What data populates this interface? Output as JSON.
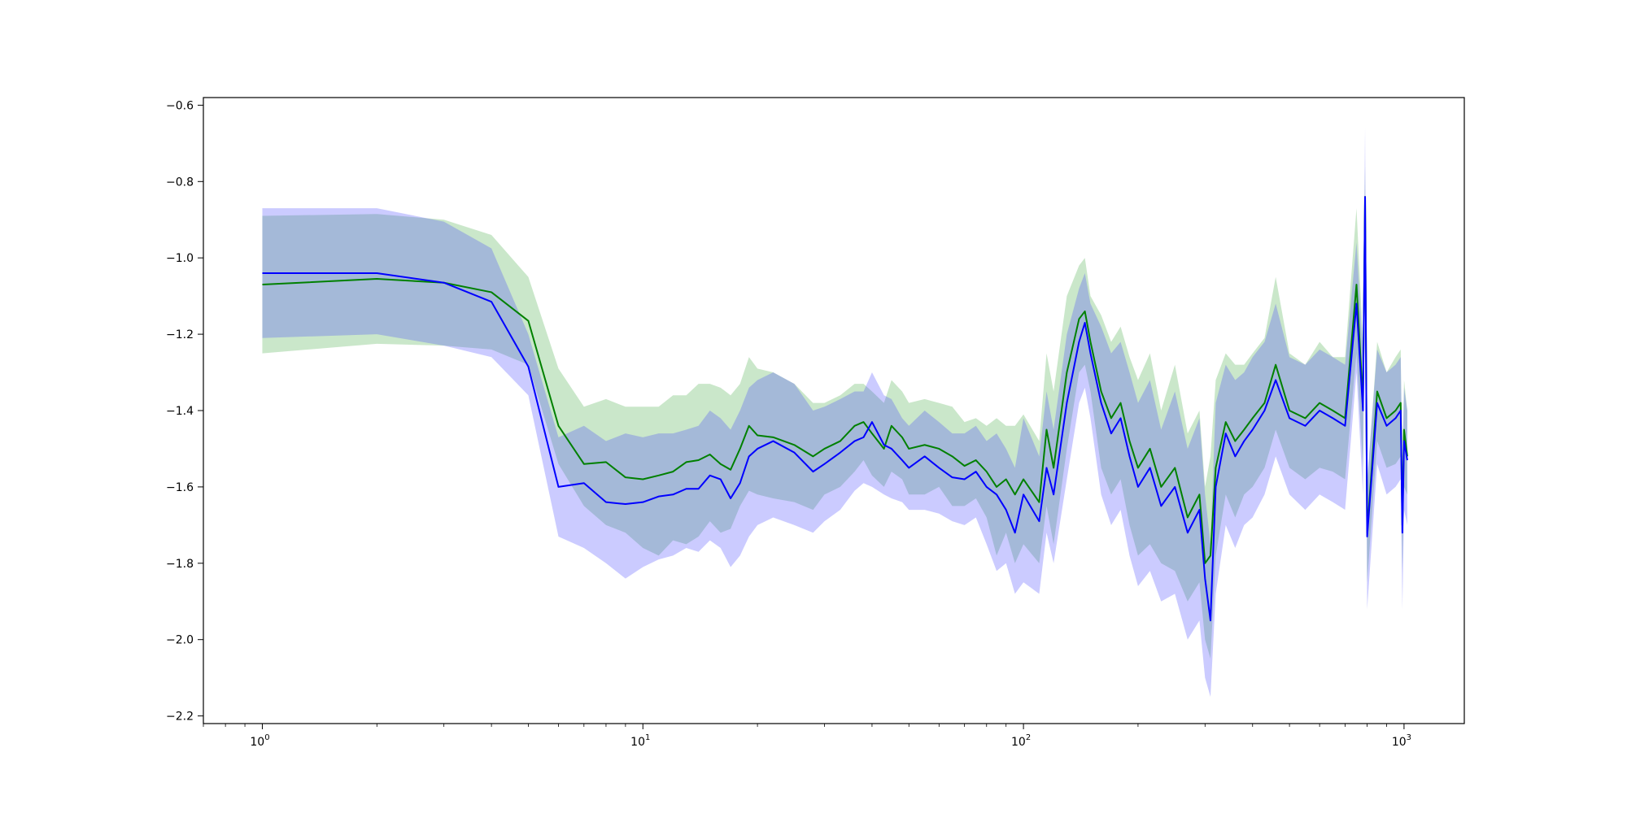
{
  "chart_data": {
    "type": "line",
    "title": "",
    "xlabel": "",
    "ylabel": "",
    "xscale": "log",
    "xlim": [
      0.7,
      1440
    ],
    "ylim": [
      -2.22,
      -0.58
    ],
    "grid": false,
    "legend": "none",
    "x_ticks": [
      {
        "value": 1,
        "base": "10",
        "exp": "0"
      },
      {
        "value": 10,
        "base": "10",
        "exp": "1"
      },
      {
        "value": 100,
        "base": "10",
        "exp": "2"
      },
      {
        "value": 1000,
        "base": "10",
        "exp": "3"
      }
    ],
    "y_ticks": [
      {
        "value": -0.6,
        "label": "−0.6"
      },
      {
        "value": -0.8,
        "label": "−0.8"
      },
      {
        "value": -1.0,
        "label": "−1.0"
      },
      {
        "value": -1.2,
        "label": "−1.2"
      },
      {
        "value": -1.4,
        "label": "−1.4"
      },
      {
        "value": -1.6,
        "label": "−1.6"
      },
      {
        "value": -1.8,
        "label": "−1.8"
      },
      {
        "value": -2.0,
        "label": "−2.0"
      },
      {
        "value": -2.2,
        "label": "−2.2"
      }
    ],
    "series": [
      {
        "color": "#008000",
        "band_color": "#2ca02c",
        "band_opacity": 0.25,
        "x": [
          1,
          2,
          3,
          4,
          5,
          6,
          7,
          8,
          9,
          10,
          11,
          12,
          13,
          14,
          15,
          16,
          17,
          18,
          19,
          20,
          22,
          25,
          28,
          30,
          33,
          36,
          38,
          40,
          43,
          45,
          48,
          50,
          55,
          60,
          65,
          70,
          75,
          80,
          85,
          90,
          95,
          100,
          110,
          115,
          120,
          130,
          140,
          145,
          150,
          160,
          170,
          180,
          190,
          200,
          215,
          230,
          250,
          270,
          290,
          300,
          310,
          320,
          340,
          360,
          380,
          400,
          430,
          460,
          500,
          550,
          600,
          650,
          700,
          750,
          780,
          790,
          800,
          850,
          900,
          950,
          980,
          990,
          1000,
          1020
        ],
        "y": [
          -1.07,
          -1.055,
          -1.065,
          -1.09,
          -1.165,
          -1.44,
          -1.54,
          -1.535,
          -1.575,
          -1.58,
          -1.57,
          -1.56,
          -1.535,
          -1.53,
          -1.515,
          -1.54,
          -1.555,
          -1.5,
          -1.44,
          -1.465,
          -1.47,
          -1.49,
          -1.52,
          -1.5,
          -1.48,
          -1.44,
          -1.43,
          -1.46,
          -1.5,
          -1.44,
          -1.47,
          -1.5,
          -1.49,
          -1.5,
          -1.52,
          -1.545,
          -1.53,
          -1.56,
          -1.6,
          -1.58,
          -1.62,
          -1.58,
          -1.64,
          -1.45,
          -1.55,
          -1.3,
          -1.16,
          -1.14,
          -1.22,
          -1.35,
          -1.42,
          -1.38,
          -1.48,
          -1.55,
          -1.5,
          -1.6,
          -1.55,
          -1.68,
          -1.62,
          -1.8,
          -1.78,
          -1.55,
          -1.43,
          -1.48,
          -1.45,
          -1.42,
          -1.38,
          -1.28,
          -1.4,
          -1.42,
          -1.38,
          -1.4,
          -1.42,
          -1.07,
          -1.38,
          -0.84,
          -1.72,
          -1.35,
          -1.42,
          -1.4,
          -1.38,
          -1.7,
          -1.45,
          -1.52
        ],
        "lo": [
          -1.25,
          -1.225,
          -1.23,
          -1.24,
          -1.28,
          -1.54,
          -1.65,
          -1.7,
          -1.72,
          -1.76,
          -1.78,
          -1.74,
          -1.75,
          -1.73,
          -1.69,
          -1.72,
          -1.71,
          -1.65,
          -1.61,
          -1.62,
          -1.63,
          -1.64,
          -1.66,
          -1.62,
          -1.6,
          -1.56,
          -1.53,
          -1.57,
          -1.6,
          -1.56,
          -1.58,
          -1.62,
          -1.62,
          -1.6,
          -1.65,
          -1.65,
          -1.63,
          -1.68,
          -1.78,
          -1.72,
          -1.8,
          -1.75,
          -1.8,
          -1.65,
          -1.75,
          -1.5,
          -1.3,
          -1.28,
          -1.35,
          -1.55,
          -1.62,
          -1.58,
          -1.7,
          -1.78,
          -1.75,
          -1.8,
          -1.82,
          -1.9,
          -1.85,
          -2.0,
          -2.05,
          -1.78,
          -1.62,
          -1.68,
          -1.62,
          -1.6,
          -1.55,
          -1.45,
          -1.55,
          -1.58,
          -1.55,
          -1.56,
          -1.58,
          -1.25,
          -1.55,
          -0.92,
          -1.85,
          -1.48,
          -1.55,
          -1.54,
          -1.52,
          -1.82,
          -1.6,
          -1.62
        ],
        "hi": [
          -0.89,
          -0.885,
          -0.9,
          -0.94,
          -1.05,
          -1.29,
          -1.39,
          -1.37,
          -1.39,
          -1.39,
          -1.39,
          -1.36,
          -1.36,
          -1.33,
          -1.33,
          -1.34,
          -1.36,
          -1.33,
          -1.26,
          -1.29,
          -1.3,
          -1.33,
          -1.38,
          -1.38,
          -1.36,
          -1.33,
          -1.33,
          -1.35,
          -1.38,
          -1.32,
          -1.35,
          -1.38,
          -1.37,
          -1.38,
          -1.39,
          -1.43,
          -1.42,
          -1.44,
          -1.42,
          -1.44,
          -1.44,
          -1.41,
          -1.48,
          -1.25,
          -1.35,
          -1.1,
          -1.02,
          -1.0,
          -1.1,
          -1.15,
          -1.22,
          -1.18,
          -1.26,
          -1.32,
          -1.25,
          -1.4,
          -1.28,
          -1.46,
          -1.4,
          -1.6,
          -1.52,
          -1.32,
          -1.25,
          -1.28,
          -1.28,
          -1.25,
          -1.21,
          -1.05,
          -1.25,
          -1.28,
          -1.22,
          -1.26,
          -1.26,
          -0.87,
          -1.22,
          -0.76,
          -1.6,
          -1.22,
          -1.3,
          -1.26,
          -1.24,
          -1.58,
          -1.32,
          -1.4
        ]
      },
      {
        "color": "#0000ff",
        "band_color": "#4040ff",
        "band_opacity": 0.27,
        "x": [
          1,
          2,
          3,
          4,
          5,
          6,
          7,
          8,
          9,
          10,
          11,
          12,
          13,
          14,
          15,
          16,
          17,
          18,
          19,
          20,
          22,
          25,
          28,
          30,
          33,
          36,
          38,
          40,
          43,
          45,
          48,
          50,
          55,
          60,
          65,
          70,
          75,
          80,
          85,
          90,
          95,
          100,
          110,
          115,
          120,
          130,
          140,
          145,
          150,
          160,
          170,
          180,
          190,
          200,
          215,
          230,
          250,
          270,
          290,
          300,
          310,
          320,
          340,
          360,
          380,
          400,
          430,
          460,
          500,
          550,
          600,
          650,
          700,
          750,
          780,
          790,
          800,
          850,
          900,
          950,
          980,
          990,
          1000,
          1020
        ],
        "y": [
          -1.04,
          -1.04,
          -1.065,
          -1.115,
          -1.285,
          -1.6,
          -1.59,
          -1.64,
          -1.645,
          -1.64,
          -1.625,
          -1.62,
          -1.605,
          -1.605,
          -1.57,
          -1.58,
          -1.63,
          -1.59,
          -1.52,
          -1.5,
          -1.48,
          -1.51,
          -1.56,
          -1.54,
          -1.51,
          -1.48,
          -1.47,
          -1.43,
          -1.49,
          -1.5,
          -1.53,
          -1.55,
          -1.52,
          -1.55,
          -1.575,
          -1.58,
          -1.56,
          -1.6,
          -1.62,
          -1.66,
          -1.72,
          -1.62,
          -1.69,
          -1.55,
          -1.62,
          -1.38,
          -1.22,
          -1.17,
          -1.25,
          -1.38,
          -1.46,
          -1.42,
          -1.52,
          -1.6,
          -1.55,
          -1.65,
          -1.6,
          -1.72,
          -1.66,
          -1.84,
          -1.95,
          -1.6,
          -1.46,
          -1.52,
          -1.48,
          -1.45,
          -1.4,
          -1.32,
          -1.42,
          -1.44,
          -1.4,
          -1.42,
          -1.44,
          -1.12,
          -1.4,
          -0.84,
          -1.73,
          -1.38,
          -1.44,
          -1.42,
          -1.4,
          -1.72,
          -1.48,
          -1.53
        ],
        "lo": [
          -1.21,
          -1.2,
          -1.23,
          -1.26,
          -1.36,
          -1.73,
          -1.76,
          -1.8,
          -1.84,
          -1.81,
          -1.79,
          -1.78,
          -1.76,
          -1.77,
          -1.74,
          -1.76,
          -1.81,
          -1.78,
          -1.73,
          -1.7,
          -1.68,
          -1.7,
          -1.72,
          -1.69,
          -1.66,
          -1.61,
          -1.59,
          -1.6,
          -1.62,
          -1.63,
          -1.64,
          -1.66,
          -1.66,
          -1.67,
          -1.69,
          -1.7,
          -1.68,
          -1.75,
          -1.82,
          -1.8,
          -1.88,
          -1.85,
          -1.88,
          -1.72,
          -1.8,
          -1.58,
          -1.38,
          -1.34,
          -1.42,
          -1.62,
          -1.7,
          -1.66,
          -1.78,
          -1.86,
          -1.82,
          -1.9,
          -1.88,
          -2.0,
          -1.95,
          -2.1,
          -2.15,
          -1.88,
          -1.7,
          -1.76,
          -1.7,
          -1.68,
          -1.62,
          -1.52,
          -1.62,
          -1.66,
          -1.62,
          -1.64,
          -1.66,
          -1.3,
          -1.62,
          -0.98,
          -1.92,
          -1.54,
          -1.62,
          -1.6,
          -1.58,
          -1.92,
          -1.66,
          -1.7
        ],
        "hi": [
          -0.87,
          -0.87,
          -0.905,
          -0.975,
          -1.2,
          -1.47,
          -1.44,
          -1.48,
          -1.46,
          -1.47,
          -1.46,
          -1.46,
          -1.45,
          -1.44,
          -1.4,
          -1.42,
          -1.45,
          -1.4,
          -1.34,
          -1.32,
          -1.3,
          -1.33,
          -1.4,
          -1.39,
          -1.37,
          -1.35,
          -1.35,
          -1.3,
          -1.36,
          -1.37,
          -1.42,
          -1.44,
          -1.4,
          -1.43,
          -1.46,
          -1.46,
          -1.44,
          -1.48,
          -1.46,
          -1.5,
          -1.55,
          -1.42,
          -1.52,
          -1.35,
          -1.45,
          -1.2,
          -1.08,
          -1.04,
          -1.12,
          -1.18,
          -1.25,
          -1.22,
          -1.3,
          -1.38,
          -1.32,
          -1.45,
          -1.35,
          -1.5,
          -1.42,
          -1.62,
          -1.75,
          -1.38,
          -1.28,
          -1.32,
          -1.3,
          -1.26,
          -1.22,
          -1.12,
          -1.26,
          -1.28,
          -1.24,
          -1.26,
          -1.28,
          -0.96,
          -1.25,
          -0.66,
          -1.58,
          -1.24,
          -1.3,
          -1.28,
          -1.26,
          -1.55,
          -1.34,
          -1.4
        ]
      }
    ]
  }
}
